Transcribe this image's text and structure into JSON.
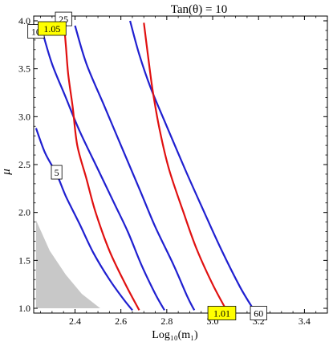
{
  "chart_data": {
    "type": "line",
    "title": "Tan(θ) = 10",
    "xlabel": "Log₁₀(m₁)",
    "ylabel": "μ",
    "xlim": [
      2.22,
      3.5
    ],
    "ylim": [
      0.95,
      4.05
    ],
    "x_ticks": [
      "2.4",
      "2.6",
      "2.8",
      "3.0",
      "3.2",
      "3.4"
    ],
    "y_ticks": [
      "1.0",
      "1.5",
      "2.0",
      "2.5",
      "3.0",
      "3.5",
      "4.0"
    ],
    "grid": false,
    "legend": "none",
    "shaded_region": {
      "color": "#c8c8c8",
      "points": [
        [
          2.23,
          1.0
        ],
        [
          2.51,
          1.0
        ],
        [
          2.43,
          1.15
        ],
        [
          2.36,
          1.35
        ],
        [
          2.29,
          1.6
        ],
        [
          2.23,
          1.92
        ]
      ]
    },
    "series": [
      {
        "label": "5",
        "color": "#1f1fd0",
        "label_color": "#ffffff",
        "label_at": [
          2.32,
          2.42
        ],
        "points": [
          [
            2.23,
            2.88
          ],
          [
            2.27,
            2.62
          ],
          [
            2.32,
            2.4
          ],
          [
            2.36,
            2.17
          ],
          [
            2.42,
            1.88
          ],
          [
            2.48,
            1.58
          ],
          [
            2.55,
            1.3
          ],
          [
            2.61,
            1.1
          ],
          [
            2.65,
            0.98
          ]
        ]
      },
      {
        "label": "10",
        "color": "#1f1fd0",
        "label_color": "#ffffff",
        "label_at": [
          2.23,
          3.89
        ],
        "points": [
          [
            2.26,
            3.87
          ],
          [
            2.3,
            3.55
          ],
          [
            2.36,
            3.2
          ],
          [
            2.42,
            2.85
          ],
          [
            2.5,
            2.45
          ],
          [
            2.57,
            2.1
          ],
          [
            2.63,
            1.8
          ],
          [
            2.69,
            1.45
          ],
          [
            2.75,
            1.15
          ],
          [
            2.79,
            0.98
          ]
        ]
      },
      {
        "label": "25",
        "color": "#1f1fd0",
        "label_color": "#ffffff",
        "label_at": [
          2.35,
          4.02
        ],
        "points": [
          [
            2.4,
            3.95
          ],
          [
            2.45,
            3.55
          ],
          [
            2.53,
            3.1
          ],
          [
            2.6,
            2.7
          ],
          [
            2.68,
            2.25
          ],
          [
            2.75,
            1.85
          ],
          [
            2.83,
            1.45
          ],
          [
            2.89,
            1.12
          ],
          [
            2.92,
            0.98
          ]
        ]
      },
      {
        "label": "60",
        "color": "#1f1fd0",
        "label_color": "#ffffff",
        "label_at": [
          3.2,
          0.95
        ],
        "points": [
          [
            2.64,
            4.0
          ],
          [
            2.68,
            3.65
          ],
          [
            2.73,
            3.3
          ],
          [
            2.8,
            2.9
          ],
          [
            2.88,
            2.45
          ],
          [
            2.96,
            2.02
          ],
          [
            3.04,
            1.6
          ],
          [
            3.12,
            1.22
          ],
          [
            3.18,
            0.98
          ]
        ]
      },
      {
        "label": "1.05",
        "color": "#e01010",
        "label_color": "#ffff00",
        "label_at": [
          2.3,
          3.92
        ],
        "points": [
          [
            2.35,
            4.02
          ],
          [
            2.36,
            3.75
          ],
          [
            2.37,
            3.45
          ],
          [
            2.39,
            3.1
          ],
          [
            2.41,
            2.7
          ],
          [
            2.45,
            2.35
          ],
          [
            2.49,
            2.0
          ],
          [
            2.55,
            1.6
          ],
          [
            2.62,
            1.25
          ],
          [
            2.68,
            0.98
          ]
        ]
      },
      {
        "label": "1.01",
        "color": "#e01010",
        "label_color": "#ffff00",
        "label_at": [
          3.04,
          0.95
        ],
        "points": [
          [
            2.7,
            3.98
          ],
          [
            2.72,
            3.6
          ],
          [
            2.74,
            3.25
          ],
          [
            2.77,
            2.85
          ],
          [
            2.81,
            2.45
          ],
          [
            2.87,
            2.02
          ],
          [
            2.93,
            1.62
          ],
          [
            3.0,
            1.25
          ],
          [
            3.06,
            0.98
          ]
        ]
      }
    ]
  }
}
